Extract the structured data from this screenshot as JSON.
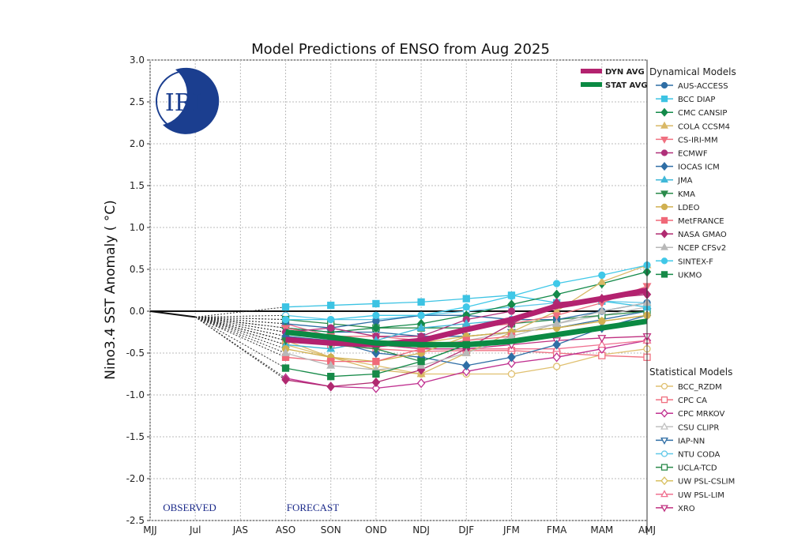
{
  "chart_data": {
    "type": "line",
    "title": "Model Predictions of ENSO from Aug 2025",
    "xlabel": "",
    "ylabel": "Nino3.4 SST Anomaly ( °C)",
    "ylim": [
      -2.5,
      3.0
    ],
    "yticks": [
      3.0,
      2.5,
      2.0,
      1.5,
      1.0,
      0.5,
      0.0,
      -0.5,
      -1.0,
      -1.5,
      -2.0,
      -2.5
    ],
    "grid": true,
    "categories": [
      "MJJ",
      "Jul",
      "JAS",
      "ASO",
      "SON",
      "OND",
      "NDJ",
      "DJF",
      "JFM",
      "FMA",
      "MAM",
      "AMJ"
    ],
    "forecast_categories": [
      "ASO",
      "SON",
      "OND",
      "NDJ",
      "DJF",
      "JFM",
      "FMA",
      "MAM",
      "AMJ"
    ],
    "observed": {
      "categories": [
        "MJJ",
        "Jul"
      ],
      "values": [
        0.0,
        -0.07
      ]
    },
    "annotations": {
      "observed": "OBSERVED",
      "forecast": "FORECAST"
    },
    "logo_text": "IRI",
    "averages": [
      {
        "name": "DYN AVG",
        "color": "#b3226f",
        "values": [
          -0.34,
          -0.38,
          -0.4,
          -0.35,
          -0.22,
          -0.1,
          0.06,
          0.15,
          0.25
        ]
      },
      {
        "name": "STAT AVG",
        "color": "#0b8a43",
        "values": [
          -0.25,
          -0.31,
          -0.38,
          -0.4,
          -0.4,
          -0.36,
          -0.28,
          -0.2,
          -0.12
        ]
      }
    ],
    "legend_groups": {
      "dynamical": "Dynamical Models",
      "statistical": "Statistical Models"
    },
    "legend_placement": "right",
    "dynamical": [
      {
        "name": "AUS-ACCESS",
        "color": "#2f6ea5",
        "marker": "circle",
        "values": [
          -0.15,
          -0.2,
          -0.12,
          -0.05,
          -0.05,
          -0.1,
          -0.1,
          0.0,
          0.1
        ]
      },
      {
        "name": "BCC DIAP",
        "color": "#3cc3e3",
        "marker": "square",
        "values": [
          0.05,
          0.07,
          0.09,
          0.11,
          0.15,
          0.19,
          0.1,
          0.12,
          0.05
        ]
      },
      {
        "name": "CMC CANSIP",
        "color": "#138a4a",
        "marker": "diamond",
        "values": [
          -0.2,
          -0.25,
          -0.2,
          -0.15,
          -0.05,
          0.08,
          0.2,
          0.33,
          0.47
        ]
      },
      {
        "name": "COLA CCSM4",
        "color": "#d9b866",
        "marker": "triangle",
        "values": [
          -0.35,
          -0.55,
          -0.7,
          -0.75,
          -0.5,
          -0.25,
          0.0,
          0.35,
          0.55
        ]
      },
      {
        "name": "CS-IRI-MM",
        "color": "#f07080",
        "marker": "triangle-down",
        "values": [
          -0.2,
          -0.3,
          -0.3,
          -0.35,
          -0.2,
          -0.15,
          -0.05,
          0.1,
          0.3
        ]
      },
      {
        "name": "ECMWF",
        "color": "#b0307a",
        "marker": "circle",
        "values": [
          -0.25,
          -0.2,
          -0.3,
          -0.3,
          -0.1,
          0.0
        ]
      },
      {
        "name": "IOCAS ICM",
        "color": "#2f6ea5",
        "marker": "diamond",
        "values": [
          -0.3,
          -0.35,
          -0.5,
          -0.55,
          -0.65,
          -0.55,
          -0.4,
          -0.2,
          -0.05
        ]
      },
      {
        "name": "JMA",
        "color": "#40b8d8",
        "marker": "triangle",
        "values": [
          -0.4,
          -0.45,
          -0.35,
          -0.2,
          -0.15,
          -0.1
        ]
      },
      {
        "name": "KMA",
        "color": "#2a8a4a",
        "marker": "triangle-down",
        "values": [
          -0.35,
          -0.4,
          -0.45,
          -0.6,
          -0.4
        ]
      },
      {
        "name": "LDEO",
        "color": "#d0b050",
        "marker": "circle",
        "values": [
          -0.45,
          -0.55,
          -0.6,
          -0.5,
          -0.3,
          -0.25,
          -0.2,
          -0.12,
          -0.05
        ]
      },
      {
        "name": "MetFRANCE",
        "color": "#f06878",
        "marker": "square",
        "values": [
          -0.55,
          -0.6,
          -0.6,
          -0.45,
          -0.35,
          -0.3
        ]
      },
      {
        "name": "NASA GMAO",
        "color": "#b02a70",
        "marker": "diamond",
        "values": [
          -0.82,
          -0.9,
          -0.85,
          -0.7,
          -0.45,
          -0.15,
          0.1,
          0.15,
          0.2
        ]
      },
      {
        "name": "NCEP CFSv2",
        "color": "#b8b8b8",
        "marker": "triangle",
        "values": [
          -0.5,
          -0.65,
          -0.7,
          -0.65,
          -0.5,
          -0.3,
          -0.15,
          0.0,
          0.1
        ]
      },
      {
        "name": "SINTEX-F",
        "color": "#40c8e8",
        "marker": "circle",
        "values": [
          -0.1,
          -0.1,
          -0.05,
          -0.05,
          0.05,
          0.18,
          0.33,
          0.43,
          0.55
        ]
      },
      {
        "name": "UKMO",
        "color": "#168a48",
        "marker": "square",
        "values": [
          -0.68,
          -0.78,
          -0.75,
          -0.6,
          -0.4
        ]
      }
    ],
    "statistical": [
      {
        "name": "BCC_RZDM",
        "color": "#e0c070",
        "marker": "circle",
        "values": [
          -0.4,
          -0.55,
          -0.65,
          -0.75,
          -0.75,
          -0.75,
          -0.66,
          -0.52,
          -0.45
        ]
      },
      {
        "name": "CPC CA",
        "color": "#f07080",
        "marker": "square",
        "values": [
          -0.35,
          -0.4,
          -0.45,
          -0.48,
          -0.47,
          -0.47,
          -0.5,
          -0.53,
          -0.55
        ]
      },
      {
        "name": "CPC MRKOV",
        "color": "#c03090",
        "marker": "diamond",
        "values": [
          -0.8,
          -0.9,
          -0.92,
          -0.86,
          -0.72,
          -0.62,
          -0.55,
          -0.45,
          -0.35
        ]
      },
      {
        "name": "CSU CLIPR",
        "color": "#c0c0c0",
        "marker": "triangle",
        "values": [
          -0.3,
          -0.35,
          -0.4,
          -0.4,
          -0.35,
          -0.25,
          -0.15,
          -0.05,
          0.05
        ]
      },
      {
        "name": "IAP-NN",
        "color": "#2f6ea5",
        "marker": "triangle-down",
        "values": [
          -0.2,
          -0.25,
          -0.25,
          -0.3,
          -0.3,
          -0.25,
          -0.2,
          -0.1,
          0.0
        ]
      },
      {
        "name": "NTU CODA",
        "color": "#60c8e8",
        "marker": "circle",
        "values": [
          -0.05,
          -0.1,
          -0.1,
          -0.05,
          0.0,
          0.05,
          0.1,
          0.12,
          0.1
        ]
      },
      {
        "name": "UCLA-TCD",
        "color": "#2a8a4a",
        "marker": "square",
        "values": [
          -0.1,
          -0.15,
          -0.2,
          -0.2,
          -0.2,
          -0.15,
          -0.1,
          -0.05,
          0.0
        ]
      },
      {
        "name": "UW PSL-CSLIM",
        "color": "#d8c060",
        "marker": "diamond",
        "values": [
          -0.25,
          -0.3,
          -0.35,
          -0.38,
          -0.3,
          -0.25,
          -0.2,
          -0.12,
          -0.05
        ]
      },
      {
        "name": "UW PSL-LIM",
        "color": "#f07090",
        "marker": "triangle",
        "values": [
          -0.15,
          -0.3,
          -0.4,
          -0.45,
          -0.45,
          -0.45,
          -0.45,
          -0.4,
          -0.35
        ]
      },
      {
        "name": "XRO",
        "color": "#c03080",
        "marker": "triangle-down",
        "values": [
          -0.2,
          -0.3,
          -0.4,
          -0.45,
          -0.45,
          -0.4,
          -0.35,
          -0.32,
          -0.3
        ]
      }
    ]
  }
}
